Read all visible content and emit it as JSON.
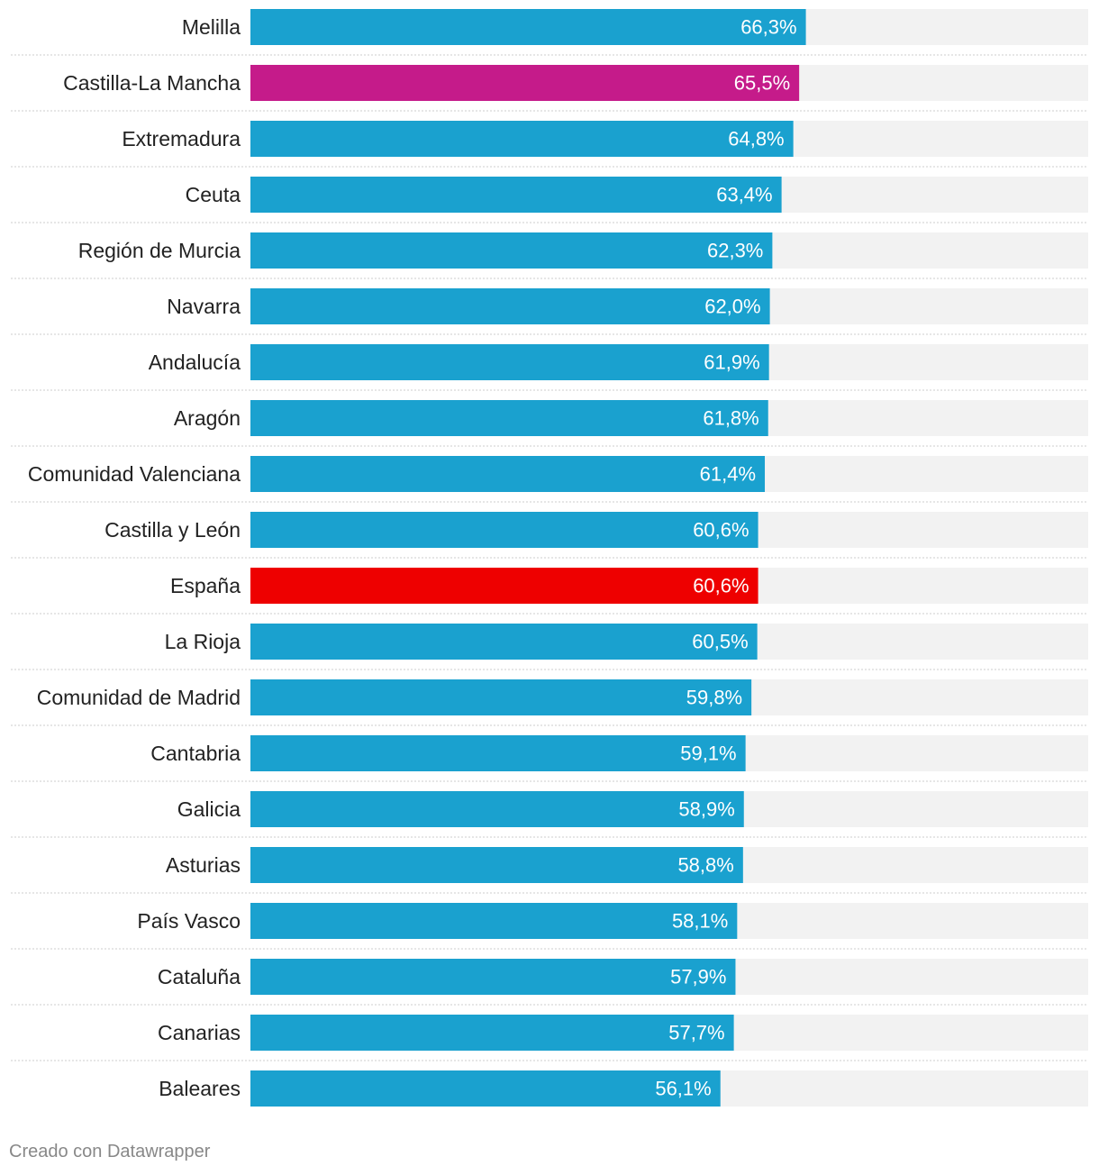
{
  "chart_data": {
    "type": "bar",
    "orientation": "horizontal",
    "categories": [
      "Melilla",
      "Castilla-La Mancha",
      "Extremadura",
      "Ceuta",
      "Región de Murcia",
      "Navarra",
      "Andalucía",
      "Aragón",
      "Comunidad Valenciana",
      "Castilla y León",
      "España",
      "La Rioja",
      "Comunidad de Madrid",
      "Cantabria",
      "Galicia",
      "Asturias",
      "País Vasco",
      "Cataluña",
      "Canarias",
      "Baleares"
    ],
    "values": [
      66.3,
      65.5,
      64.8,
      63.4,
      62.3,
      62.0,
      61.9,
      61.8,
      61.4,
      60.6,
      60.6,
      60.5,
      59.8,
      59.1,
      58.9,
      58.8,
      58.1,
      57.9,
      57.7,
      56.1
    ],
    "value_labels": [
      "66,3%",
      "65,5%",
      "64,8%",
      "63,4%",
      "62,3%",
      "62,0%",
      "61,9%",
      "61,8%",
      "61,4%",
      "60,6%",
      "60,6%",
      "60,5%",
      "59,8%",
      "59,1%",
      "58,9%",
      "58,8%",
      "58,1%",
      "57,9%",
      "57,7%",
      "56,1%"
    ],
    "highlight": {
      "Castilla-La Mancha": "magenta",
      "España": "red"
    },
    "xlim": [
      0,
      100
    ],
    "colors": {
      "default": "#1aa1cf",
      "magenta": "#c51b8a",
      "red": "#ee0000",
      "track": "#f2f2f2",
      "separator": "#cccccc"
    },
    "title": "",
    "xlabel": "",
    "ylabel": ""
  },
  "footer": {
    "credit": "Creado con Datawrapper"
  }
}
